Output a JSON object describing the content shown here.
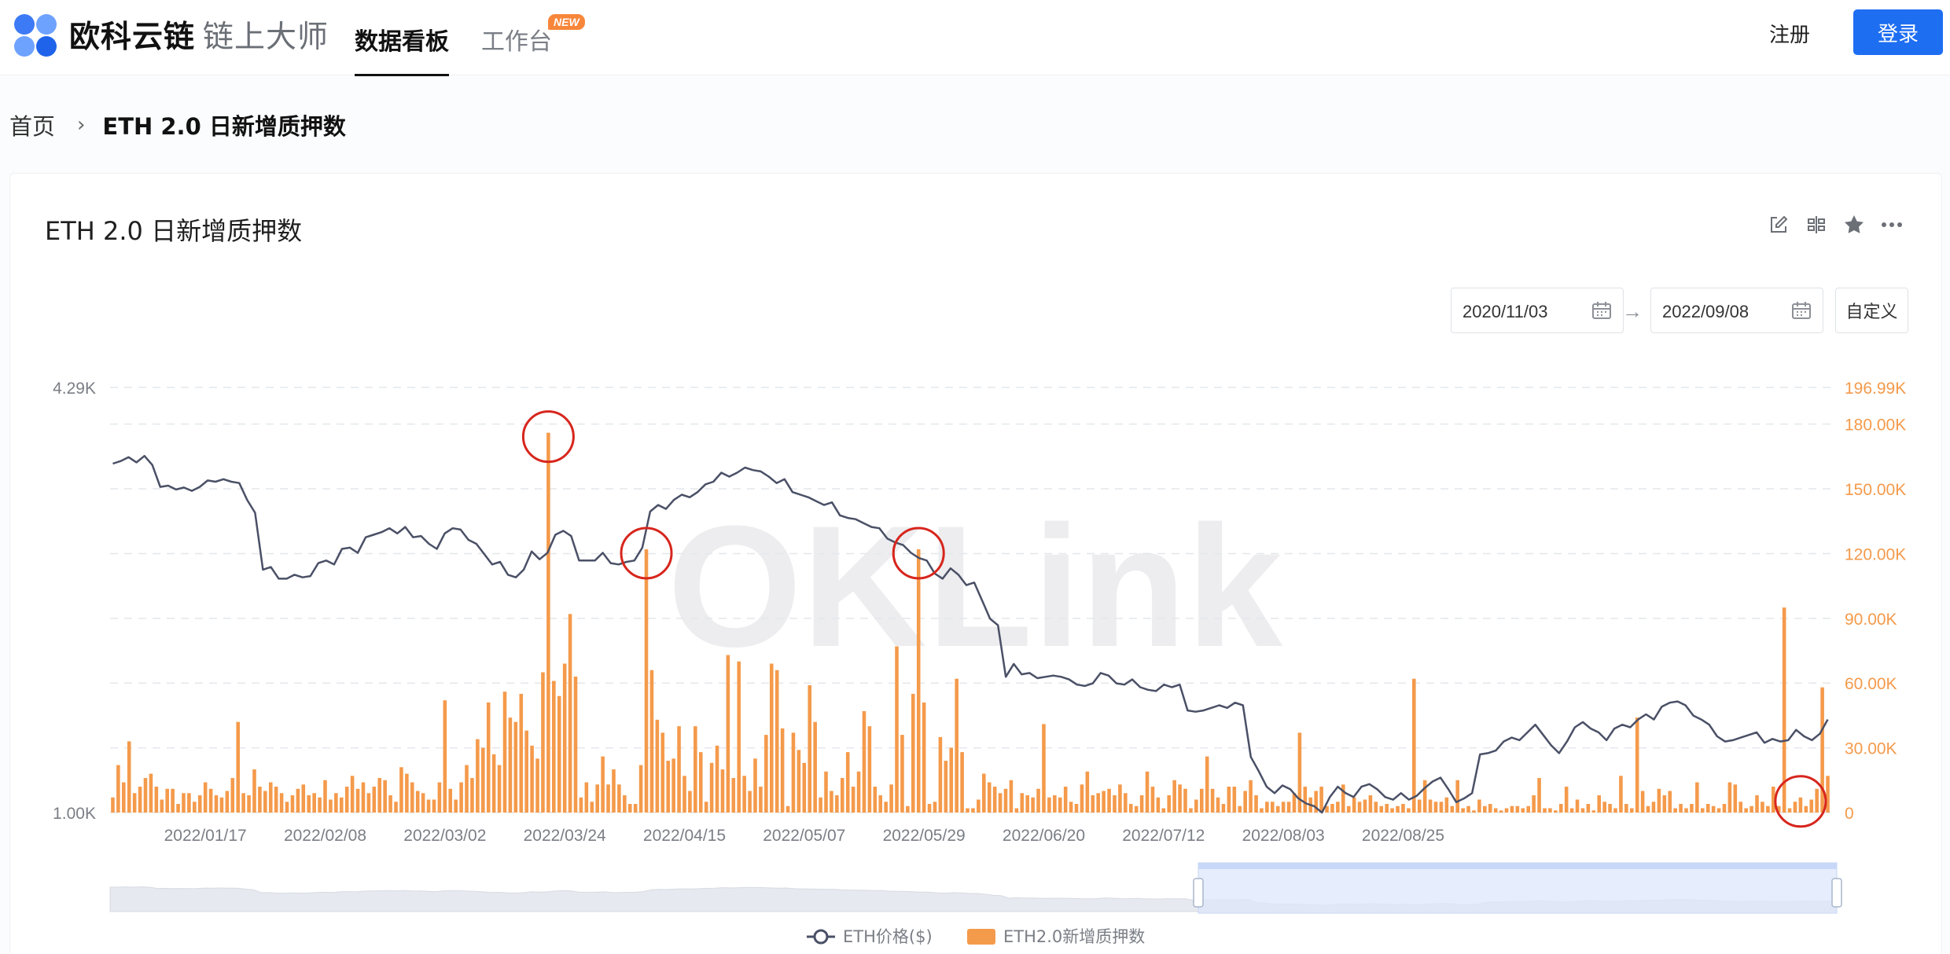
{
  "brand": {
    "name": "欧科云链",
    "product": "链上大师"
  },
  "nav": {
    "tabs": [
      {
        "label": "数据看板"
      },
      {
        "label": "工作台"
      }
    ],
    "new_badge": "NEW"
  },
  "auth": {
    "register": "注册",
    "login": "登录"
  },
  "breadcrumb": {
    "home": "首页",
    "current": "ETH 2.0 日新增质押数"
  },
  "card": {
    "title": "ETH 2.0 日新增质押数",
    "start_date": "2020/11/03",
    "end_date": "2022/09/08",
    "custom_label": "自定义",
    "tools": [
      "edit-icon",
      "compare-icon",
      "star-icon",
      "more-icon"
    ]
  },
  "colors": {
    "price_line": "#4a5066",
    "stake_bar": "#f49a4b",
    "accent": "#1e6ef2",
    "highlight_circle": "#d7261d"
  },
  "chart_data": {
    "type": "bar+line",
    "watermark": "OKLink",
    "left_axis": {
      "ticks": [
        "4.29K",
        "1.00K"
      ],
      "min": 1000,
      "max": 4290
    },
    "right_axis": {
      "ticks": [
        "196.99K",
        "180.00K",
        "150.00K",
        "120.00K",
        "90.00K",
        "60.00K",
        "30.00K",
        "0"
      ],
      "min": 0,
      "max": 196990
    },
    "x_labels": [
      "2022/01/17",
      "2022/02/08",
      "2022/03/02",
      "2022/03/24",
      "2022/04/15",
      "2022/05/07",
      "2022/05/29",
      "2022/06/20",
      "2022/07/12",
      "2022/08/03",
      "2022/08/25"
    ],
    "x_start": "2021/12/31",
    "legend": [
      "ETH价格($)",
      "ETH2.0新增质押数"
    ],
    "price_usd": [
      3700,
      3720,
      3750,
      3710,
      3760,
      3690,
      3520,
      3530,
      3500,
      3515,
      3490,
      3520,
      3570,
      3560,
      3580,
      3560,
      3550,
      3420,
      3320,
      2880,
      2900,
      2810,
      2810,
      2840,
      2820,
      2830,
      2930,
      2950,
      2920,
      3040,
      3050,
      3010,
      3130,
      3150,
      3170,
      3200,
      3160,
      3210,
      3130,
      3140,
      3080,
      3040,
      3160,
      3200,
      3190,
      3110,
      3080,
      3000,
      2920,
      2940,
      2840,
      2820,
      2880,
      3020,
      2960,
      3010,
      3150,
      3180,
      3140,
      2950,
      2950,
      2950,
      3010,
      2930,
      2920,
      2940,
      2950,
      3050,
      3330,
      3380,
      3350,
      3420,
      3460,
      3440,
      3480,
      3540,
      3560,
      3630,
      3600,
      3630,
      3670,
      3650,
      3640,
      3600,
      3550,
      3580,
      3480,
      3460,
      3440,
      3410,
      3380,
      3400,
      3300,
      3280,
      3270,
      3240,
      3210,
      3200,
      3120,
      3090,
      3070,
      3010,
      2970,
      2950,
      2850,
      2810,
      2890,
      2840,
      2760,
      2780,
      2640,
      2500,
      2450,
      2050,
      2150,
      2070,
      2080,
      2040,
      2050,
      2060,
      2050,
      2030,
      1990,
      1980,
      2000,
      2080,
      2060,
      2000,
      1990,
      2030,
      1970,
      1950,
      1940,
      1990,
      1970,
      1990,
      1790,
      1780,
      1790,
      1810,
      1830,
      1810,
      1850,
      1830,
      1430,
      1320,
      1200,
      1150,
      1210,
      1180,
      1110,
      1070,
      1050,
      1000,
      1120,
      1200,
      1150,
      1120,
      1200,
      1220,
      1180,
      1120,
      1100,
      1150,
      1100,
      1130,
      1190,
      1240,
      1270,
      1180,
      1080,
      1110,
      1150,
      1450,
      1460,
      1480,
      1550,
      1580,
      1560,
      1620,
      1680,
      1600,
      1520,
      1460,
      1550,
      1660,
      1700,
      1650,
      1620,
      1560,
      1650,
      1680,
      1660,
      1720,
      1760,
      1720,
      1820,
      1850,
      1860,
      1830,
      1750,
      1720,
      1680,
      1590,
      1550,
      1560,
      1580,
      1600,
      1620,
      1540,
      1570,
      1550,
      1560,
      1640,
      1590,
      1560,
      1610,
      1720
    ],
    "daily_stake": [
      7000,
      22000,
      14000,
      33000,
      9000,
      12000,
      16000,
      18000,
      12000,
      6000,
      11000,
      11000,
      4000,
      9000,
      9000,
      5000,
      8000,
      14000,
      11000,
      8000,
      7000,
      10000,
      16000,
      42000,
      9000,
      8000,
      20000,
      12000,
      10000,
      14000,
      12000,
      9000,
      5000,
      8000,
      11000,
      13000,
      8000,
      9000,
      7000,
      15000,
      6000,
      9000,
      7000,
      12000,
      17000,
      11000,
      14000,
      9000,
      12000,
      16000,
      15000,
      8000,
      5000,
      21000,
      18000,
      14000,
      10000,
      9000,
      6000,
      6000,
      14000,
      52000,
      11000,
      6000,
      14000,
      22000,
      16000,
      34000,
      30000,
      51000,
      27000,
      22000,
      56000,
      44000,
      42000,
      55000,
      38000,
      31000,
      25000,
      65000,
      176000,
      61000,
      54000,
      69000,
      92000,
      63000,
      7000,
      14000,
      5000,
      13000,
      26000,
      13000,
      20000,
      13000,
      8000,
      4000,
      4000,
      22000,
      122000,
      66000,
      43000,
      37000,
      24000,
      25000,
      40000,
      17000,
      10000,
      40000,
      28000,
      5000,
      23000,
      31000,
      20000,
      73000,
      16000,
      70000,
      17000,
      10000,
      25000,
      12000,
      36000,
      69000,
      66000,
      39000,
      3000,
      37000,
      29000,
      23000,
      59000,
      42000,
      7000,
      19000,
      10000,
      8000,
      16000,
      28000,
      12000,
      19000,
      47000,
      40000,
      12000,
      8000,
      5000,
      13000,
      77000,
      36000,
      3000,
      55000,
      122000,
      51000,
      4000,
      5000,
      35000,
      24000,
      30000,
      62000,
      28000,
      2000,
      2000,
      6000,
      18000,
      14000,
      12000,
      9000,
      11000,
      15000,
      2000,
      9000,
      8000,
      7000,
      11000,
      41000,
      7000,
      8000,
      7000,
      12000,
      5000,
      4000,
      13000,
      19000,
      8000,
      9000,
      10000,
      11000,
      8000,
      13000,
      9000,
      4000,
      3000,
      8000,
      19000,
      12000,
      7000,
      2000,
      8000,
      15000,
      13000,
      11000,
      2000,
      6000,
      11000,
      26000,
      11000,
      7000,
      4000,
      12000,
      12000,
      3000,
      10000,
      15000,
      8000,
      2000,
      5000,
      5000,
      3000,
      5000,
      5000,
      9000,
      37000,
      12000,
      7000,
      10000,
      12000,
      3000,
      4000,
      5000,
      13000,
      3000,
      7000,
      5000,
      6000,
      8000,
      5000,
      3000,
      4000,
      2000,
      3000,
      4000,
      2000,
      62000,
      6000,
      15000,
      6000,
      5000,
      5000,
      7000,
      3000,
      15000,
      2000,
      3000,
      1000,
      6000,
      3000,
      4000,
      2000,
      1000,
      2000,
      3000,
      3000,
      2000,
      3000,
      8000,
      16000,
      2000,
      2000,
      1000,
      4000,
      12000,
      2000,
      6000,
      2000,
      4000,
      1000,
      8000,
      5000,
      4000,
      2000,
      17000,
      4000,
      2000,
      44000,
      10000,
      3000,
      5000,
      11000,
      8000,
      10000,
      2000,
      4000,
      2000,
      4000,
      14000,
      2000,
      4000,
      3000,
      2000,
      4000,
      14000,
      13000,
      5000,
      2000,
      3000,
      8000,
      5000,
      3000,
      12000,
      3000,
      95000,
      2000,
      5000,
      7000,
      3000,
      6000,
      11000,
      58000,
      17000
    ],
    "highlighted_bars": [
      80,
      98,
      148,
      310
    ]
  }
}
